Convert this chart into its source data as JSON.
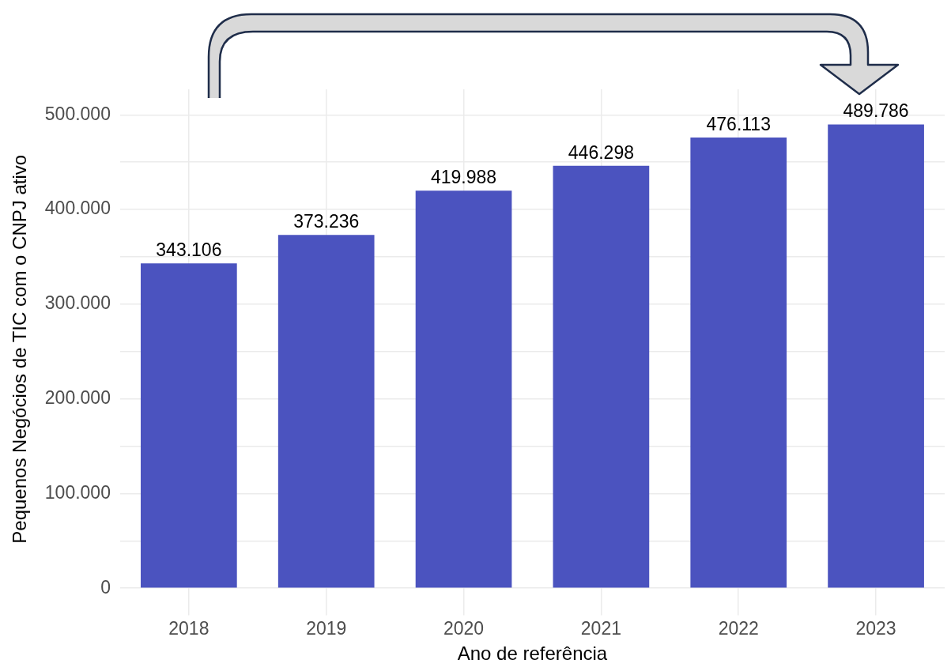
{
  "chart_data": {
    "type": "bar",
    "xlabel": "Ano de referência",
    "ylabel": "Pequenos Negócios de TIC com o CNPJ ativo",
    "categories": [
      "2018",
      "2019",
      "2020",
      "2021",
      "2022",
      "2023"
    ],
    "values": [
      343106,
      373236,
      419988,
      446298,
      476113,
      489786
    ],
    "value_labels": [
      "343.106",
      "373.236",
      "419.988",
      "446.298",
      "476.113",
      "489.786"
    ],
    "color": "#4b53bf",
    "ylim": [
      -22000,
      527000
    ],
    "yticks": [
      {
        "value": 0,
        "label": "0"
      },
      {
        "value": 50000,
        "label": null
      },
      {
        "value": 100000,
        "label": "100.000"
      },
      {
        "value": 150000,
        "label": null
      },
      {
        "value": 200000,
        "label": "200.000"
      },
      {
        "value": 250000,
        "label": null
      },
      {
        "value": 300000,
        "label": "300.000"
      },
      {
        "value": 350000,
        "label": null
      },
      {
        "value": 400000,
        "label": "400.000"
      },
      {
        "value": 450000,
        "label": null
      },
      {
        "value": 500000,
        "label": "500.000"
      }
    ],
    "grid": true,
    "legend": false
  }
}
